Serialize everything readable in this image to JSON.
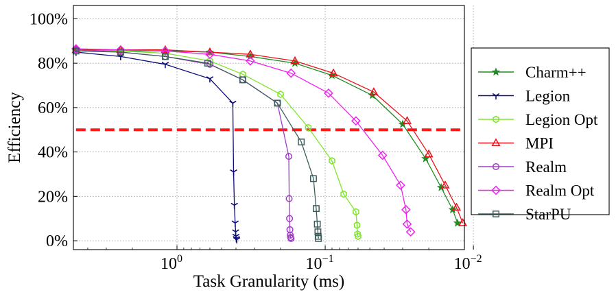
{
  "chart_data": {
    "type": "line",
    "title": "",
    "xlabel": "Task Granularity (ms)",
    "ylabel": "Efficiency",
    "xscale": "log",
    "x_reversed": true,
    "xlim": [
      5,
      0.0115
    ],
    "ylim": [
      -4,
      106
    ],
    "x_ticks": [
      {
        "value": 1,
        "base": "10",
        "exp": "0"
      },
      {
        "value": 0.1,
        "base": "10",
        "exp": "−1"
      },
      {
        "value": 0.01,
        "base": "10",
        "exp": "−2"
      }
    ],
    "y_ticks": [
      {
        "value": 0,
        "label": "0%"
      },
      {
        "value": 20,
        "label": "20%"
      },
      {
        "value": 40,
        "label": "40%"
      },
      {
        "value": 60,
        "label": "60%"
      },
      {
        "value": 80,
        "label": "80%"
      },
      {
        "value": 100,
        "label": "100%"
      }
    ],
    "grid": true,
    "legend_position": "right",
    "reference_line": {
      "y": 50,
      "color": "#ff1a1a",
      "style": "dashed"
    },
    "series": [
      {
        "name": "Charm++",
        "color": "#228b22",
        "marker": "star",
        "x": [
          4.8,
          2.4,
          1.2,
          0.6,
          0.32,
          0.16,
          0.09,
          0.048,
          0.03,
          0.021,
          0.0165,
          0.0138,
          0.0128
        ],
        "y": [
          86,
          85.5,
          85.5,
          85,
          83,
          80,
          74.5,
          65.5,
          52.5,
          37,
          24,
          14,
          8
        ]
      },
      {
        "name": "Legion",
        "color": "#0b0b7a",
        "marker": "tri-down",
        "x": [
          4.8,
          2.4,
          1.2,
          0.6,
          0.42,
          0.415,
          0.41,
          0.405,
          0.402,
          0.4,
          0.398,
          0.395
        ],
        "y": [
          85,
          83,
          79.5,
          73,
          62,
          31,
          16,
          8,
          4,
          2,
          1,
          0.5
        ]
      },
      {
        "name": "Legion Opt",
        "color": "#7fe52a",
        "marker": "hexagon",
        "x": [
          4.8,
          2.4,
          1.2,
          0.6,
          0.36,
          0.2,
          0.13,
          0.09,
          0.075,
          0.062,
          0.061,
          0.0605,
          0.06
        ],
        "y": [
          86,
          85.5,
          84.5,
          81,
          75,
          66,
          51,
          36,
          21,
          13,
          7,
          3,
          2
        ]
      },
      {
        "name": "MPI",
        "color": "#e8111a",
        "marker": "triangle",
        "x": [
          4.8,
          2.4,
          1.2,
          0.6,
          0.32,
          0.16,
          0.088,
          0.047,
          0.028,
          0.02,
          0.0155,
          0.013,
          0.0118
        ],
        "y": [
          86,
          86,
          86,
          85,
          84,
          81,
          75.5,
          67,
          54,
          39,
          25,
          15,
          8
        ]
      },
      {
        "name": "Realm",
        "color": "#a13cc8",
        "marker": "circle",
        "x": [
          4.8,
          2.4,
          1.2,
          0.6,
          0.36,
          0.21,
          0.176,
          0.175,
          0.174,
          0.173,
          0.172,
          0.171,
          0.17
        ],
        "y": [
          86,
          85,
          83,
          79.5,
          72.5,
          62,
          38,
          19,
          10,
          5,
          2.5,
          1.5,
          1
        ]
      },
      {
        "name": "Realm Opt",
        "color": "#ee22ee",
        "marker": "diamond",
        "x": [
          4.8,
          2.4,
          1.2,
          0.6,
          0.32,
          0.17,
          0.095,
          0.062,
          0.041,
          0.031,
          0.0285,
          0.028,
          0.0265
        ],
        "y": [
          86.5,
          86,
          85.5,
          84,
          81,
          75.5,
          66.5,
          54,
          38.5,
          25,
          14,
          7.5,
          4
        ]
      },
      {
        "name": "StarPU",
        "color": "#3d5c5c",
        "marker": "square",
        "x": [
          4.8,
          2.4,
          1.2,
          0.62,
          0.36,
          0.21,
          0.145,
          0.12,
          0.115,
          0.113,
          0.112,
          0.1115,
          0.111
        ],
        "y": [
          85.5,
          85,
          83,
          80,
          72.5,
          62,
          44.5,
          28,
          14.5,
          7.5,
          4,
          2,
          1
        ]
      }
    ]
  }
}
